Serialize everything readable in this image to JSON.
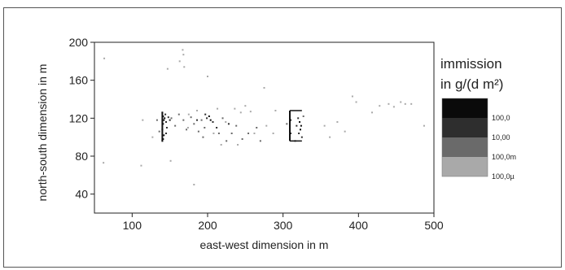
{
  "chart_data": {
    "type": "scatter",
    "title": "",
    "xlabel": "east-west dimension in m",
    "ylabel": "north-south dimension in m",
    "xlim": [
      50,
      500
    ],
    "ylim": [
      20,
      200
    ],
    "xticks": [
      100,
      200,
      300,
      400,
      500
    ],
    "yticks": [
      40,
      80,
      120,
      160,
      200
    ],
    "grid": false,
    "legend": {
      "placement": "right",
      "title_line1": "immission",
      "title_line2": "in g/(d m²)",
      "levels": [
        {
          "label": "100,0",
          "color": "#0a0a0a"
        },
        {
          "label": "10,00",
          "color": "#2e2e2e"
        },
        {
          "label": "100,0m",
          "color": "#6a6a6a"
        },
        {
          "label": "100,0µ",
          "color": "#a9a9a9"
        }
      ]
    },
    "series": [
      {
        "level": "100,0",
        "points": [
          [
            140,
            126
          ],
          [
            141,
            122
          ],
          [
            142,
            118
          ],
          [
            141,
            114
          ],
          [
            140,
            108
          ],
          [
            142,
            102
          ],
          [
            141,
            98
          ],
          [
            140,
            96
          ],
          [
            143,
            120
          ],
          [
            309,
            124
          ],
          [
            310,
            118
          ],
          [
            309,
            110
          ],
          [
            310,
            104
          ],
          [
            309,
            98
          ],
          [
            322,
            116
          ],
          [
            323,
            108
          ],
          [
            324,
            112
          ],
          [
            202,
            122
          ],
          [
            204,
            118
          ]
        ]
      },
      {
        "level": "10,00",
        "points": [
          [
            144,
            124
          ],
          [
            145,
            116
          ],
          [
            146,
            110
          ],
          [
            145,
            104
          ],
          [
            148,
            121
          ],
          [
            150,
            118
          ],
          [
            197,
            124
          ],
          [
            199,
            120
          ],
          [
            207,
            116
          ],
          [
            212,
            110
          ],
          [
            320,
            120
          ],
          [
            318,
            112
          ],
          [
            321,
            104
          ],
          [
            325,
            100
          ],
          [
            316,
            96
          ],
          [
            186,
            118
          ],
          [
            228,
            114
          ]
        ]
      },
      {
        "level": "100,0m",
        "points": [
          [
            133,
            118
          ],
          [
            136,
            106
          ],
          [
            152,
            120
          ],
          [
            157,
            112
          ],
          [
            162,
            124
          ],
          [
            168,
            118
          ],
          [
            172,
            108
          ],
          [
            178,
            121
          ],
          [
            182,
            114
          ],
          [
            188,
            106
          ],
          [
            192,
            118
          ],
          [
            194,
            100
          ],
          [
            196,
            110
          ],
          [
            215,
            104
          ],
          [
            220,
            120
          ],
          [
            225,
            96
          ],
          [
            232,
            104
          ],
          [
            238,
            112
          ],
          [
            246,
            98
          ],
          [
            254,
            104
          ],
          [
            265,
            110
          ],
          [
            270,
            96
          ],
          [
            305,
            114
          ],
          [
            327,
            122
          ]
        ]
      },
      {
        "level": "100,0µ",
        "points": [
          [
            63,
            183
          ],
          [
            62,
            73
          ],
          [
            112,
            70
          ],
          [
            114,
            118
          ],
          [
            127,
            100
          ],
          [
            147,
            172
          ],
          [
            151,
            75
          ],
          [
            167,
            192
          ],
          [
            168,
            187
          ],
          [
            163,
            180
          ],
          [
            169,
            174
          ],
          [
            174,
            110
          ],
          [
            182,
            50
          ],
          [
            175,
            124
          ],
          [
            200,
            164
          ],
          [
            208,
            104
          ],
          [
            218,
            92
          ],
          [
            224,
            116
          ],
          [
            240,
            92
          ],
          [
            250,
            133
          ],
          [
            257,
            127
          ],
          [
            275,
            152
          ],
          [
            278,
            112
          ],
          [
            287,
            104
          ],
          [
            290,
            128
          ],
          [
            355,
            112
          ],
          [
            362,
            100
          ],
          [
            372,
            116
          ],
          [
            382,
            106
          ],
          [
            392,
            143
          ],
          [
            397,
            137
          ],
          [
            418,
            126
          ],
          [
            428,
            133
          ],
          [
            440,
            135
          ],
          [
            447,
            132
          ],
          [
            456,
            137
          ],
          [
            462,
            135
          ],
          [
            470,
            135
          ],
          [
            487,
            112
          ],
          [
            262,
            104
          ],
          [
            236,
            130
          ],
          [
            244,
            126
          ],
          [
            186,
            128
          ],
          [
            213,
            130
          ]
        ]
      }
    ]
  }
}
